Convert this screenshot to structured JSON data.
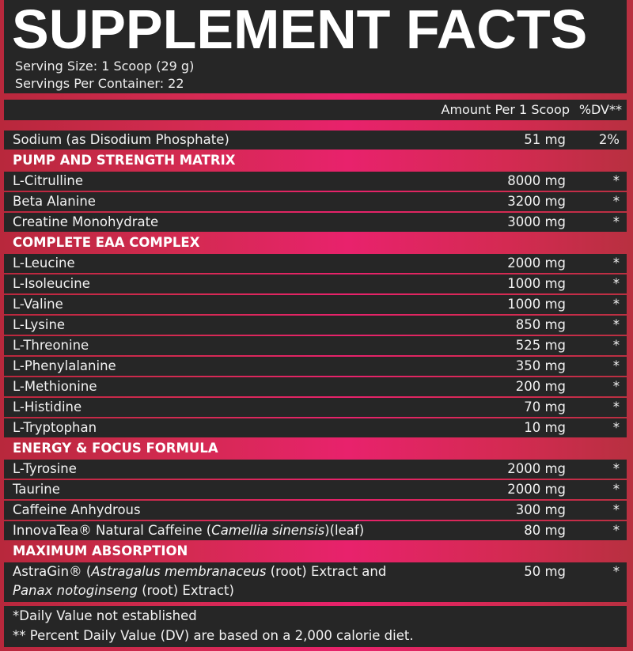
{
  "title": "SUPPLEMENT FACTS",
  "serving_size": "Serving Size: 1 Scoop (29 g)",
  "servings_per_container": "Servings Per Container: 22",
  "header": {
    "amount": "Amount Per 1 Scoop",
    "dv": "%DV**"
  },
  "rows": [
    {
      "name": "Sodium (as Disodium Phosphate)",
      "amount": "51 mg",
      "dv": "2%"
    },
    {
      "section": "PUMP AND STRENGTH MATRIX"
    },
    {
      "name": "L-Citrulline",
      "amount": "8000 mg",
      "dv": "*"
    },
    {
      "name": "Beta Alanine",
      "amount": "3200 mg",
      "dv": "*"
    },
    {
      "name": "Creatine Monohydrate",
      "amount": "3000 mg",
      "dv": "*"
    },
    {
      "section": "COMPLETE EAA COMPLEX"
    },
    {
      "name": "L-Leucine",
      "amount": "2000 mg",
      "dv": "*"
    },
    {
      "name": "L-Isoleucine",
      "amount": "1000 mg",
      "dv": "*"
    },
    {
      "name": "L-Valine",
      "amount": "1000 mg",
      "dv": "*"
    },
    {
      "name": "L-Lysine",
      "amount": "850 mg",
      "dv": "*"
    },
    {
      "name": "L-Threonine",
      "amount": "525 mg",
      "dv": "*"
    },
    {
      "name": "L-Phenylalanine",
      "amount": "350 mg",
      "dv": "*"
    },
    {
      "name": "L-Methionine",
      "amount": "200 mg",
      "dv": "*"
    },
    {
      "name": "L-Histidine",
      "amount": "70 mg",
      "dv": "*"
    },
    {
      "name": "L-Tryptophan",
      "amount": "10 mg",
      "dv": "*"
    },
    {
      "section": "ENERGY & FOCUS FORMULA"
    },
    {
      "name": "L-Tyrosine",
      "amount": "2000 mg",
      "dv": "*"
    },
    {
      "name": "Taurine",
      "amount": "2000 mg",
      "dv": "*"
    },
    {
      "name": "Caffeine Anhydrous",
      "amount": "300 mg",
      "dv": "*"
    },
    {
      "name_parts": [
        "InnovaTea® Natural Caffeine (",
        "Camellia sinensis",
        ")(leaf)"
      ],
      "amount": "80 mg",
      "dv": "*"
    },
    {
      "section": "MAXIMUM ABSORPTION"
    },
    {
      "name_parts": [
        "AstraGin® (",
        "Astragalus membranaceus",
        " (root) Extract and"
      ],
      "name_line2_parts": [
        "Panax notoginseng",
        " (root) Extract)"
      ],
      "amount": "50 mg",
      "dv": "*"
    }
  ],
  "footnotes": [
    "*Daily Value not established",
    "** Percent Daily Value (DV) are based on a 2,000 calorie diet."
  ],
  "colors": {
    "panel": "#262626",
    "accent": "#e8226c",
    "edge": "#b8283c"
  }
}
